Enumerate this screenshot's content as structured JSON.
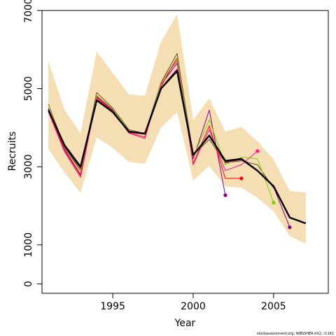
{
  "chart_data": {
    "type": "line",
    "xlabel": "Year",
    "ylabel": "Recruits",
    "xlim": [
      1990.6,
      2008.4
    ],
    "ylim": [
      -240,
      7000
    ],
    "x_ticks": [
      1995,
      2000,
      2005
    ],
    "x_tick_labels": [
      "1995",
      "2000",
      "2005"
    ],
    "y_ticks": [
      0,
      1000,
      3000,
      5000,
      7000
    ],
    "y_tick_labels": [
      "0",
      "1000",
      "3000",
      "5000",
      "7000"
    ],
    "grid": false,
    "legend": "none",
    "credit": "stockassessment.org, WBSSHER-XX2, r1161",
    "band": {
      "name": "",
      "color": "#f5deb3",
      "x": [
        1991,
        1992,
        1993,
        1994,
        1995,
        1996,
        1997,
        1998,
        1999,
        2000,
        2001,
        2002,
        2003,
        2004,
        2005,
        2006,
        2007
      ],
      "upper": [
        5700,
        4450,
        3850,
        5950,
        5400,
        4850,
        4820,
        6200,
        6900,
        4200,
        4750,
        3900,
        4020,
        3650,
        3180,
        2380,
        2340
      ],
      "lower": [
        3450,
        2850,
        2330,
        3750,
        3480,
        3120,
        3080,
        4000,
        4400,
        2650,
        3020,
        2500,
        2460,
        2200,
        1860,
        1220,
        1030
      ]
    },
    "series": [
      {
        "name": "",
        "color": "#000000",
        "width": 2.4,
        "x": [
          1991,
          1992,
          1993,
          1994,
          1995,
          1996,
          1997,
          1998,
          1999,
          2000,
          2001,
          2002,
          2003,
          2004,
          2005,
          2006,
          2007
        ],
        "values": [
          4450,
          3550,
          3000,
          4700,
          4400,
          3900,
          3850,
          5000,
          5450,
          3300,
          3800,
          3150,
          3200,
          2900,
          2500,
          1700,
          1550
        ],
        "endpoint": false
      },
      {
        "name": "",
        "color": "#6b4226",
        "width": 1,
        "x": [
          1991,
          1992,
          1993,
          1994,
          1995,
          1996,
          1997,
          1998,
          1999,
          2000,
          2001,
          2002,
          2003,
          2004,
          2005
        ],
        "values": [
          4600,
          3500,
          2900,
          4900,
          4500,
          3950,
          3850,
          5150,
          5900,
          3300,
          3700,
          3100,
          3150,
          3050,
          2450
        ],
        "endpoint": false
      },
      {
        "name": "",
        "color": "#8b008b",
        "width": 1,
        "x": [
          1991,
          1992,
          1993,
          1994,
          1995,
          1996,
          1997,
          1998,
          1999,
          2000,
          2001,
          2002
        ],
        "values": [
          4450,
          3450,
          2800,
          4800,
          4450,
          3880,
          3830,
          5100,
          5650,
          3200,
          4450,
          2270
        ],
        "endpoint": true
      },
      {
        "name": "",
        "color": "#ff0000",
        "width": 1,
        "x": [
          1991,
          1992,
          1993,
          1994,
          1995,
          1996,
          1997,
          1998,
          1999,
          2000,
          2001,
          2002,
          2003
        ],
        "values": [
          4420,
          3420,
          2770,
          4780,
          4430,
          3870,
          3760,
          5060,
          5780,
          3080,
          4050,
          2700,
          2700
        ],
        "endpoint": true
      },
      {
        "name": "",
        "color": "#ff1493",
        "width": 1,
        "x": [
          1991,
          1992,
          1993,
          1994,
          1995,
          1996,
          1997,
          1998,
          1999,
          2000,
          2001,
          2002,
          2003,
          2004
        ],
        "values": [
          4400,
          3380,
          2730,
          4750,
          4420,
          3860,
          3720,
          5150,
          5720,
          3050,
          3950,
          2900,
          3050,
          3400
        ],
        "endpoint": true
      },
      {
        "name": "",
        "color": "#7fcc00",
        "width": 1,
        "x": [
          1991,
          1992,
          1993,
          1994,
          1995,
          1996,
          1997,
          1998,
          1999,
          2000,
          2001,
          2002,
          2003,
          2004,
          2005
        ],
        "values": [
          4580,
          3480,
          2880,
          4830,
          4480,
          3920,
          3830,
          5120,
          5800,
          3250,
          4200,
          3050,
          3250,
          3200,
          2080
        ],
        "endpoint": true
      },
      {
        "name": "",
        "color": "#800080",
        "width": 1,
        "x": [
          1991,
          1992,
          1993,
          1994,
          1995,
          1996,
          1997,
          1998,
          1999,
          2000,
          2001,
          2002,
          2003,
          2004,
          2005,
          2006
        ],
        "values": [
          4500,
          3500,
          2950,
          4720,
          4420,
          3900,
          3840,
          5020,
          5500,
          3280,
          3780,
          3120,
          3180,
          2880,
          2480,
          1450
        ],
        "endpoint": true
      }
    ]
  }
}
